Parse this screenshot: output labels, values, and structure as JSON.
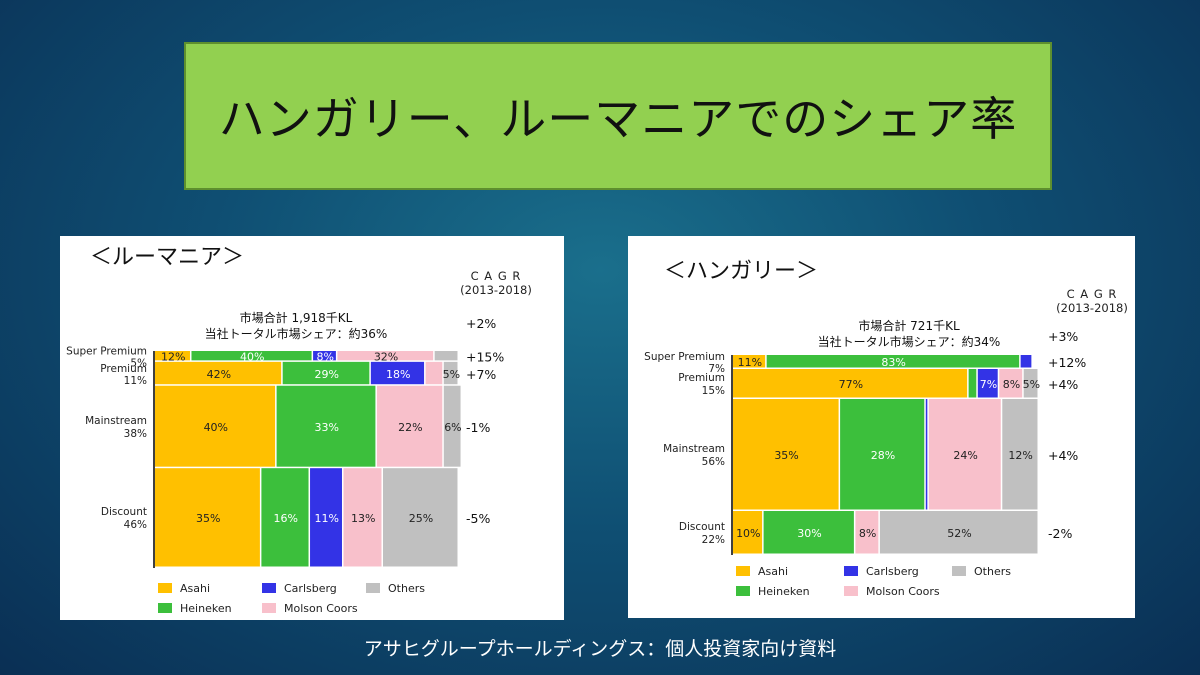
{
  "title": "ハンガリー、ルーマニアでのシェア率",
  "footer": "アサヒグループホールディングス：個人投資家向け資料",
  "colors": {
    "Asahi": "#ffc000",
    "Heineken": "#3cbf3c",
    "Carlsberg": "#3333e6",
    "Molson Coors": "#f8c0cb",
    "Others": "#c0c0c0"
  },
  "chart_data": [
    {
      "type": "mekko",
      "panel_title": "＜ルーマニア＞",
      "market_total": "市場合計 1,918千KL",
      "company_share": "当社トータル市場シェア：約36%",
      "cagr_header": [
        "C A G R",
        "(2013-2018)"
      ],
      "cagr_total": "+2%",
      "legend": [
        "Asahi",
        "Carlsberg",
        "Others",
        "Heineken",
        "Molson Coors"
      ],
      "segments": [
        {
          "name": "Super Premium",
          "share_label": "5%",
          "share": 5,
          "cagr": "+15%",
          "values": [
            {
              "brand": "Asahi",
              "v": 12
            },
            {
              "brand": "Heineken",
              "v": 40
            },
            {
              "brand": "Carlsberg",
              "v": 8
            },
            {
              "brand": "Molson Coors",
              "v": 32
            },
            {
              "brand": "Others",
              "v": 8,
              "label": ""
            }
          ]
        },
        {
          "name": "Premium",
          "share_label": "11%",
          "share": 11,
          "cagr": "+7%",
          "values": [
            {
              "brand": "Asahi",
              "v": 42
            },
            {
              "brand": "Heineken",
              "v": 29
            },
            {
              "brand": "Carlsberg",
              "v": 18
            },
            {
              "brand": "Molson Coors",
              "v": 6,
              "label": ""
            },
            {
              "brand": "Others",
              "v": 5
            }
          ]
        },
        {
          "name": "Mainstream",
          "share_label": "38%",
          "share": 38,
          "cagr": "-1%",
          "values": [
            {
              "brand": "Asahi",
              "v": 40
            },
            {
              "brand": "Heineken",
              "v": 33
            },
            {
              "brand": "Molson Coors",
              "v": 22
            },
            {
              "brand": "Others",
              "v": 6
            }
          ]
        },
        {
          "name": "Discount",
          "share_label": "46%",
          "share": 46,
          "cagr": "-5%",
          "values": [
            {
              "brand": "Asahi",
              "v": 35
            },
            {
              "brand": "Heineken",
              "v": 16
            },
            {
              "brand": "Carlsberg",
              "v": 11
            },
            {
              "brand": "Molson Coors",
              "v": 13
            },
            {
              "brand": "Others",
              "v": 25
            }
          ]
        }
      ]
    },
    {
      "type": "mekko",
      "panel_title": "＜ハンガリー＞",
      "market_total": "市場合計 721千KL",
      "company_share": "当社トータル市場シェア：約34%",
      "cagr_header": [
        "C A G R",
        "(2013-2018)"
      ],
      "cagr_total": "+3%",
      "legend": [
        "Asahi",
        "Carlsberg",
        "Others",
        "Heineken",
        "Molson Coors"
      ],
      "segments": [
        {
          "name": "Super Premium",
          "share_label": "7%",
          "share": 7,
          "cagr": "+12%",
          "values": [
            {
              "brand": "Asahi",
              "v": 11
            },
            {
              "brand": "Heineken",
              "v": 83
            },
            {
              "brand": "Carlsberg",
              "v": 4,
              "label": ""
            }
          ]
        },
        {
          "name": "Premium",
          "share_label": "15%",
          "share": 15,
          "cagr": "+4%",
          "values": [
            {
              "brand": "Asahi",
              "v": 77
            },
            {
              "brand": "Heineken",
              "v": 3,
              "label": ""
            },
            {
              "brand": "Carlsberg",
              "v": 7
            },
            {
              "brand": "Molson Coors",
              "v": 8
            },
            {
              "brand": "Others",
              "v": 5
            }
          ]
        },
        {
          "name": "Mainstream",
          "share_label": "56%",
          "share": 56,
          "cagr": "+4%",
          "values": [
            {
              "brand": "Asahi",
              "v": 35
            },
            {
              "brand": "Heineken",
              "v": 28
            },
            {
              "brand": "Carlsberg",
              "v": 1,
              "label": ""
            },
            {
              "brand": "Molson Coors",
              "v": 24
            },
            {
              "brand": "Others",
              "v": 12
            }
          ]
        },
        {
          "name": "Discount",
          "share_label": "22%",
          "share": 22,
          "cagr": "-2%",
          "values": [
            {
              "brand": "Asahi",
              "v": 10
            },
            {
              "brand": "Heineken",
              "v": 30
            },
            {
              "brand": "Molson Coors",
              "v": 8
            },
            {
              "brand": "Others",
              "v": 52
            }
          ]
        }
      ]
    }
  ]
}
